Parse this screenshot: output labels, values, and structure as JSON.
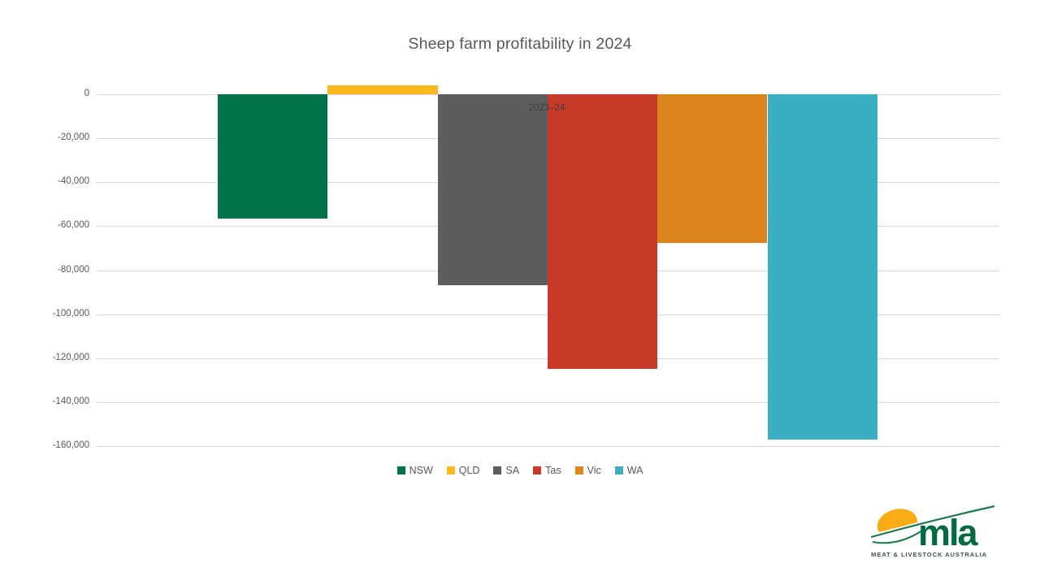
{
  "title": "Sheep farm profitability in 2024",
  "chart_data": {
    "type": "bar",
    "title": "Sheep farm profitability in 2024",
    "categories": [
      "2023–24"
    ],
    "series": [
      {
        "name": "NSW",
        "values": [
          -56500
        ],
        "color": "#007348"
      },
      {
        "name": "QLD",
        "values": [
          4000
        ],
        "color": "#FBB81D"
      },
      {
        "name": "SA",
        "values": [
          -87000
        ],
        "color": "#5D5D5D"
      },
      {
        "name": "Tas",
        "values": [
          -125000
        ],
        "color": "#C83A28"
      },
      {
        "name": "Vic",
        "values": [
          -67500
        ],
        "color": "#DB851E"
      },
      {
        "name": "WA",
        "values": [
          -157000
        ],
        "color": "#3BAEC4"
      }
    ],
    "xlabel": "",
    "ylabel": "",
    "ylim": [
      -160000,
      5000
    ],
    "ytick_interval": 20000,
    "ytick_labels": [
      "0",
      "-20,000",
      "-40,000",
      "-60,000",
      "-80,000",
      "-100,000",
      "-120,000",
      "-140,000",
      "-160,000"
    ],
    "grid": true,
    "legend_position": "bottom",
    "legend_entries": [
      "NSW",
      "QLD",
      "SA",
      "Tas",
      "Vic",
      "WA"
    ]
  },
  "colors": {
    "background": "#FFFFFF",
    "title_text": "#595959",
    "axis_text": "#595959",
    "gridline": "#D9D9D9",
    "category_label_text": "#3F3F3F"
  },
  "logo": {
    "wordmark": "mla",
    "caption": "MEAT & LIVESTOCK AUSTRALIA",
    "green": "#006B40",
    "caption_color": "#44514A",
    "sun_color": "#F9AC15"
  }
}
